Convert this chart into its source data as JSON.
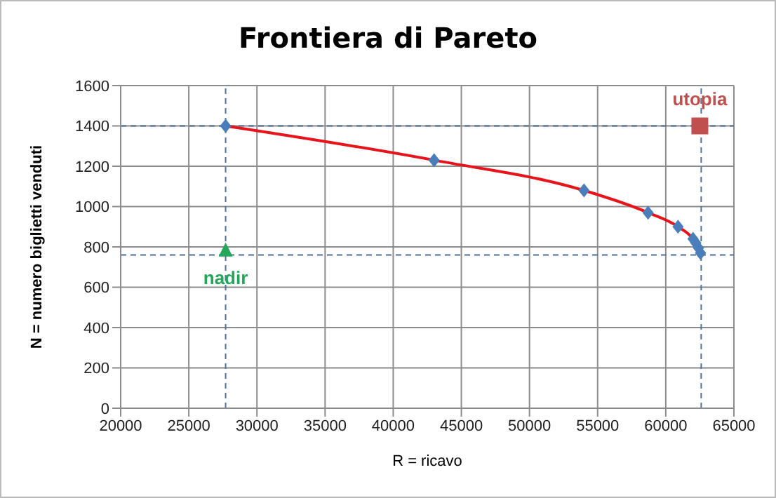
{
  "chart_data": {
    "type": "scatter",
    "title": "Frontiera di Pareto",
    "xlabel": "R = ricavo",
    "ylabel": "N = numero biglietti venduti",
    "xlim": [
      20000,
      65000
    ],
    "xticks": [
      20000,
      25000,
      30000,
      35000,
      40000,
      45000,
      50000,
      55000,
      60000,
      65000
    ],
    "ylim": [
      0,
      1600
    ],
    "yticks": [
      0,
      200,
      400,
      600,
      800,
      1000,
      1200,
      1400,
      1600
    ],
    "grid": true,
    "legend": false,
    "series": [
      {
        "color": "#4a7ebb",
        "marker": "diamond",
        "x": [
          27700,
          43000,
          54000,
          58700,
          60900,
          62000,
          62200,
          62400,
          62550
        ],
        "values": [
          1400,
          1230,
          1080,
          970,
          900,
          840,
          820,
          795,
          770
        ]
      },
      {
        "name": "utopia",
        "color": "#c0504d",
        "marker": "square",
        "x": [
          62500
        ],
        "values": [
          1400
        ]
      },
      {
        "name": "nadir",
        "color": "#23a55a",
        "marker": "triangle",
        "x": [
          27700
        ],
        "values": [
          780
        ]
      },
      {
        "type": "line",
        "color": "#e8141b",
        "marker": "none",
        "x": [
          27700,
          43000,
          54000,
          58700,
          60900,
          62000,
          62200
        ],
        "values": [
          1400,
          1230,
          1080,
          970,
          900,
          840,
          820
        ]
      }
    ],
    "ref_lines": [
      {
        "axis": "y",
        "value": 1400,
        "color": "#4f6f9f",
        "line_style": "dashed"
      },
      {
        "axis": "y",
        "value": 760,
        "color": "#4f6f9f",
        "line_style": "dashed"
      },
      {
        "axis": "x",
        "value": 27700,
        "color": "#4f6f9f",
        "line_style": "dashed"
      },
      {
        "axis": "x",
        "value": 62600,
        "color": "#4f6f9f",
        "line_style": "dashed"
      }
    ]
  }
}
